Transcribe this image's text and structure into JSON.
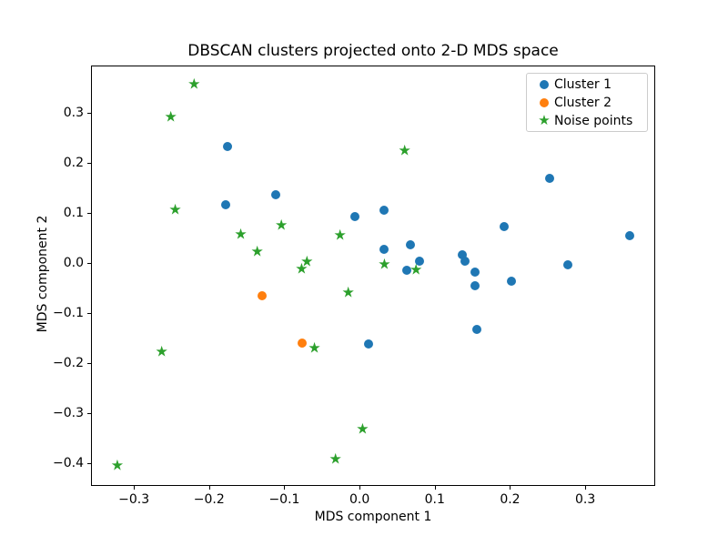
{
  "title": "DBSCAN clusters projected onto 2-D MDS space",
  "colors": {
    "cluster1": "#1f77b4",
    "cluster2": "#ff7f0e",
    "noise": "#2ca02c",
    "axes": "#000000",
    "legend_border": "#cccccc"
  },
  "legend": {
    "position": "upper right",
    "entries": [
      {
        "label": "Cluster 1",
        "marker": "circle",
        "color": "#1f77b4"
      },
      {
        "label": "Cluster 2",
        "marker": "circle",
        "color": "#ff7f0e"
      },
      {
        "label": "Noise points",
        "marker": "star",
        "color": "#2ca02c"
      }
    ]
  },
  "chart_data": {
    "type": "scatter",
    "title": "DBSCAN clusters projected onto 2-D MDS space",
    "xlabel": "MDS component 1",
    "ylabel": "MDS component 2",
    "xlim": [
      -0.357,
      0.393
    ],
    "ylim": [
      -0.445,
      0.394
    ],
    "xticks": [
      -0.3,
      -0.2,
      -0.1,
      0.0,
      0.1,
      0.2,
      0.3
    ],
    "yticks": [
      0.3,
      0.2,
      0.1,
      0.0,
      -0.1,
      -0.2,
      -0.3,
      -0.4
    ],
    "grid": false,
    "legend_position": "upper right",
    "series": [
      {
        "name": "Cluster 1",
        "marker": "circle",
        "color": "#1f77b4",
        "points": [
          [
            -0.176,
            0.233
          ],
          [
            -0.178,
            0.117
          ],
          [
            -0.111,
            0.137
          ],
          [
            -0.006,
            0.092
          ],
          [
            0.032,
            0.105
          ],
          [
            0.032,
            0.027
          ],
          [
            0.068,
            0.037
          ],
          [
            0.08,
            0.003
          ],
          [
            0.063,
            -0.015
          ],
          [
            0.137,
            0.017
          ],
          [
            0.14,
            0.004
          ],
          [
            0.153,
            -0.018
          ],
          [
            0.154,
            -0.045
          ],
          [
            0.202,
            -0.037
          ],
          [
            0.277,
            -0.004
          ],
          [
            0.192,
            0.073
          ],
          [
            0.253,
            0.169
          ],
          [
            0.359,
            0.054
          ],
          [
            0.156,
            -0.133
          ],
          [
            0.012,
            -0.161
          ]
        ]
      },
      {
        "name": "Cluster 2",
        "marker": "circle",
        "color": "#ff7f0e",
        "points": [
          [
            -0.13,
            -0.065
          ],
          [
            -0.076,
            -0.16
          ]
        ]
      },
      {
        "name": "Noise points",
        "marker": "star",
        "color": "#2ca02c",
        "points": [
          [
            -0.22,
            0.356
          ],
          [
            -0.251,
            0.29
          ],
          [
            -0.245,
            0.105
          ],
          [
            -0.263,
            -0.178
          ],
          [
            -0.322,
            -0.405
          ],
          [
            -0.158,
            0.056
          ],
          [
            -0.136,
            0.021
          ],
          [
            -0.104,
            0.074
          ],
          [
            -0.077,
            -0.012
          ],
          [
            -0.07,
            0.001
          ],
          [
            -0.026,
            0.055
          ],
          [
            -0.015,
            -0.06
          ],
          [
            0.033,
            -0.004
          ],
          [
            0.06,
            0.223
          ],
          [
            0.075,
            -0.015
          ],
          [
            -0.06,
            -0.171
          ],
          [
            0.004,
            -0.333
          ],
          [
            -0.032,
            -0.393
          ]
        ]
      }
    ]
  }
}
